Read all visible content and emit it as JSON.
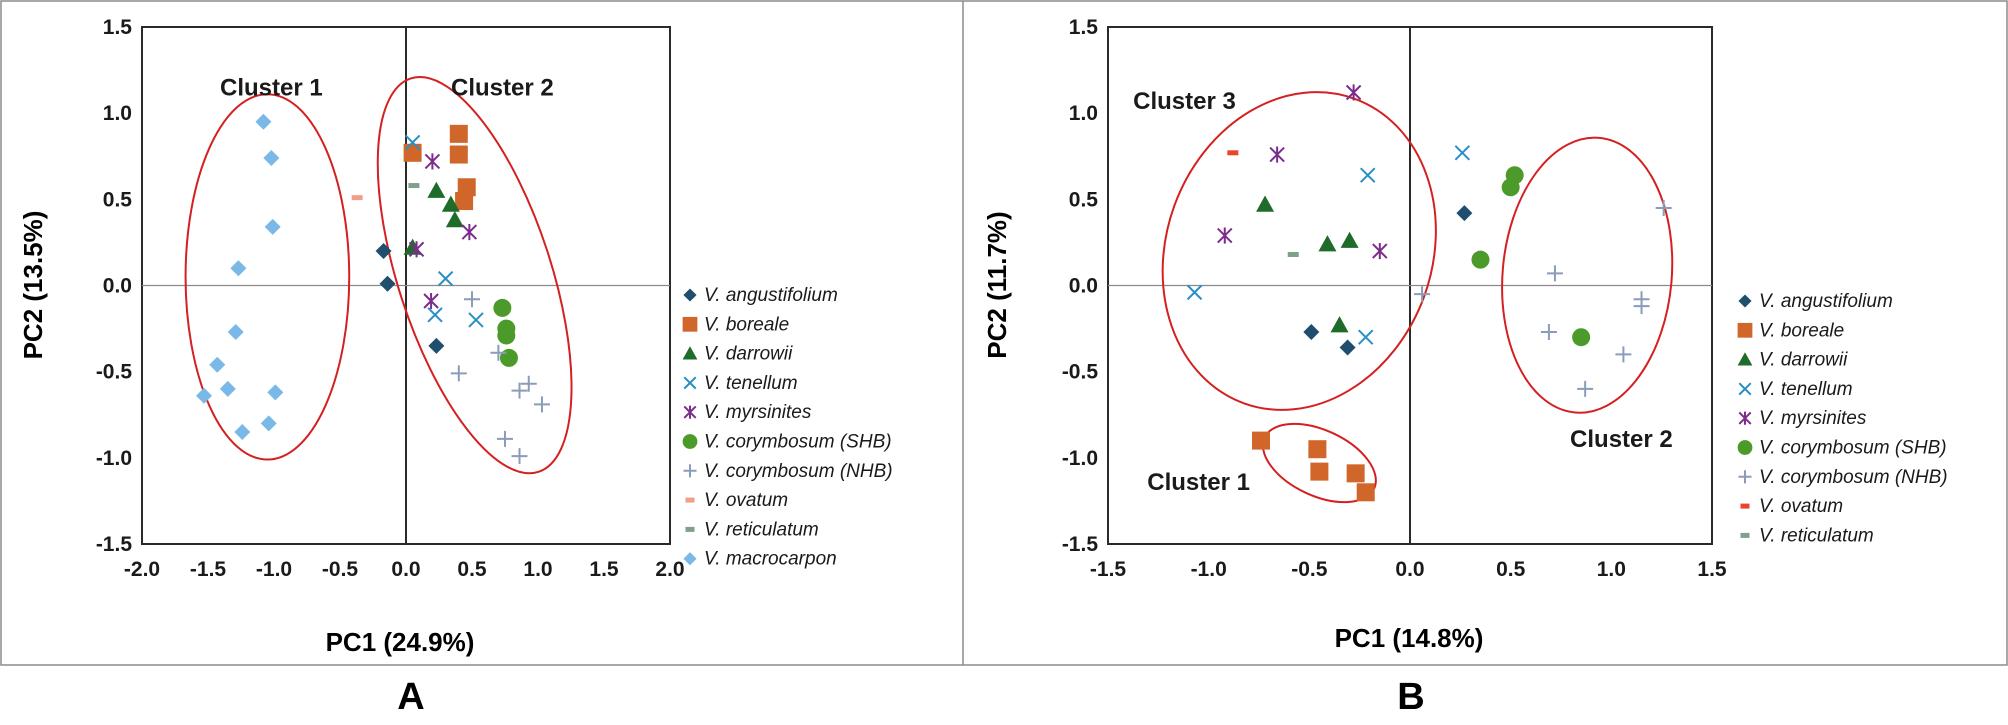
{
  "colors": {
    "V. angustifolium": "#1f4e6e",
    "V. boreale": "#d0662a",
    "V. darrowii": "#1f6b2a",
    "V. tenellum": "#2a8fc4",
    "V. myrsinites": "#7c2d8c",
    "V. corymbosum (SHB)": "#4c9a2a",
    "V. corymbosum (NHB)": "#8a9cb8",
    "V. ovatum (A)": "#f0a08a",
    "V. ovatum (B)": "#e8452c",
    "V. reticulatum": "#7fa08a",
    "V. macrocarpon": "#7ab8e8",
    "cluster_outline": "#d42020"
  },
  "chart_data": [
    {
      "type": "scatter",
      "panel_label": "A",
      "xlabel": "PC1 (24.9%)",
      "ylabel": "PC2 (13.5%)",
      "xlim": [
        -2.0,
        2.0
      ],
      "ylim": [
        -1.5,
        1.5
      ],
      "xticks": [
        "-2.0",
        "-1.5",
        "-1.0",
        "-0.5",
        "0.0",
        "0.5",
        "1.0",
        "1.5",
        "2.0"
      ],
      "yticks": [
        "1.5",
        "1.0",
        "0.5",
        "0.0",
        "-0.5",
        "-1.0",
        "-1.5"
      ],
      "legend_position": "right",
      "annotations": [
        {
          "text": "Cluster 1",
          "x": -1.02,
          "y": 1.15
        },
        {
          "text": "Cluster 2",
          "x": 0.73,
          "y": 1.15
        }
      ],
      "clusters": [
        {
          "name": "Cluster 1",
          "cx": -1.05,
          "cy": 0.05,
          "rx": 0.62,
          "ry": 1.06,
          "rot": 0
        },
        {
          "name": "Cluster 2",
          "cx": 0.52,
          "cy": 0.06,
          "rx": 0.58,
          "ry": 1.2,
          "rot": -18
        }
      ],
      "series": [
        {
          "name": "V. angustifolium",
          "marker": "diamond",
          "points": [
            [
              -0.17,
              0.2
            ],
            [
              -0.14,
              0.01
            ],
            [
              0.23,
              -0.35
            ]
          ]
        },
        {
          "name": "V. boreale",
          "marker": "square",
          "points": [
            [
              0.05,
              0.77
            ],
            [
              0.4,
              0.88
            ],
            [
              0.4,
              0.76
            ],
            [
              0.46,
              0.57
            ],
            [
              0.44,
              0.49
            ]
          ]
        },
        {
          "name": "V. darrowii",
          "marker": "triangle",
          "points": [
            [
              0.23,
              0.55
            ],
            [
              0.34,
              0.47
            ],
            [
              0.37,
              0.38
            ],
            [
              0.05,
              0.22
            ]
          ]
        },
        {
          "name": "V. tenellum",
          "marker": "x",
          "points": [
            [
              0.05,
              0.83
            ],
            [
              0.3,
              0.04
            ],
            [
              0.22,
              -0.17
            ],
            [
              0.53,
              -0.2
            ]
          ]
        },
        {
          "name": "V. myrsinites",
          "marker": "asterisk",
          "points": [
            [
              0.2,
              0.72
            ],
            [
              0.48,
              0.31
            ],
            [
              0.08,
              0.21
            ],
            [
              0.19,
              -0.09
            ]
          ]
        },
        {
          "name": "V. corymbosum (SHB)",
          "marker": "circle",
          "points": [
            [
              0.73,
              -0.13
            ],
            [
              0.76,
              -0.25
            ],
            [
              0.76,
              -0.29
            ],
            [
              0.78,
              -0.42
            ]
          ]
        },
        {
          "name": "V. corymbosum (NHB)",
          "marker": "plus",
          "points": [
            [
              0.5,
              -0.08
            ],
            [
              0.4,
              -0.51
            ],
            [
              0.7,
              -0.39
            ],
            [
              0.86,
              -0.61
            ],
            [
              0.93,
              -0.57
            ],
            [
              1.03,
              -0.69
            ],
            [
              0.75,
              -0.89
            ],
            [
              0.86,
              -0.99
            ]
          ]
        },
        {
          "name": "V. ovatum",
          "marker": "dash",
          "color_key": "V. ovatum (A)",
          "points": [
            [
              -0.37,
              0.51
            ]
          ]
        },
        {
          "name": "V. reticulatum",
          "marker": "dash",
          "points": [
            [
              0.06,
              0.58
            ]
          ]
        },
        {
          "name": "V. macrocarpon",
          "marker": "diamond",
          "points": [
            [
              -1.08,
              0.95
            ],
            [
              -1.02,
              0.74
            ],
            [
              -1.01,
              0.34
            ],
            [
              -1.27,
              0.1
            ],
            [
              -1.29,
              -0.27
            ],
            [
              -1.43,
              -0.46
            ],
            [
              -1.35,
              -0.6
            ],
            [
              -0.99,
              -0.62
            ],
            [
              -1.53,
              -0.64
            ],
            [
              -1.04,
              -0.8
            ],
            [
              -1.24,
              -0.85
            ]
          ]
        }
      ]
    },
    {
      "type": "scatter",
      "panel_label": "B",
      "xlabel": "PC1 (14.8%)",
      "ylabel": "PC2 (11.7%)",
      "xlim": [
        -1.5,
        1.5
      ],
      "ylim": [
        -1.5,
        1.5
      ],
      "xticks": [
        "-1.5",
        "-1.0",
        "-0.5",
        "0.0",
        "0.5",
        "1.0",
        "1.5"
      ],
      "yticks": [
        "1.5",
        "1.0",
        "0.5",
        "0.0",
        "-0.5",
        "-1.0",
        "-1.5"
      ],
      "legend_position": "right",
      "annotations": [
        {
          "text": "Cluster 3",
          "x": -1.12,
          "y": 1.07
        },
        {
          "text": "Cluster 2",
          "x": 1.05,
          "y": -0.89
        },
        {
          "text": "Cluster 1",
          "x": -1.05,
          "y": -1.14
        }
      ],
      "clusters": [
        {
          "name": "Cluster 3",
          "cx": -0.55,
          "cy": 0.2,
          "rx": 0.66,
          "ry": 0.94,
          "rot": 20
        },
        {
          "name": "Cluster 2",
          "cx": 0.88,
          "cy": 0.06,
          "rx": 0.42,
          "ry": 0.8,
          "rot": 5
        },
        {
          "name": "Cluster 1",
          "cx": -0.45,
          "cy": -1.03,
          "rx": 0.3,
          "ry": 0.19,
          "rot": 25
        }
      ],
      "series": [
        {
          "name": "V. angustifolium",
          "marker": "diamond",
          "points": [
            [
              0.27,
              0.42
            ],
            [
              -0.49,
              -0.27
            ],
            [
              -0.31,
              -0.36
            ]
          ]
        },
        {
          "name": "V. boreale",
          "marker": "square",
          "points": [
            [
              -0.74,
              -0.9
            ],
            [
              -0.46,
              -0.95
            ],
            [
              -0.45,
              -1.08
            ],
            [
              -0.27,
              -1.09
            ],
            [
              -0.22,
              -1.2
            ]
          ]
        },
        {
          "name": "V. darrowii",
          "marker": "triangle",
          "points": [
            [
              -0.72,
              0.47
            ],
            [
              -0.41,
              0.24
            ],
            [
              -0.3,
              0.26
            ],
            [
              -0.35,
              -0.23
            ]
          ]
        },
        {
          "name": "V. tenellum",
          "marker": "x",
          "points": [
            [
              0.26,
              0.77
            ],
            [
              -0.21,
              0.64
            ],
            [
              -1.07,
              -0.04
            ],
            [
              -0.22,
              -0.3
            ]
          ]
        },
        {
          "name": "V. myrsinites",
          "marker": "asterisk",
          "points": [
            [
              -0.28,
              1.12
            ],
            [
              -0.66,
              0.76
            ],
            [
              -0.92,
              0.29
            ],
            [
              -0.15,
              0.2
            ]
          ]
        },
        {
          "name": "V. corymbosum (SHB)",
          "marker": "circle",
          "points": [
            [
              0.52,
              0.64
            ],
            [
              0.5,
              0.57
            ],
            [
              0.35,
              0.15
            ],
            [
              0.85,
              -0.3
            ]
          ]
        },
        {
          "name": "V. corymbosum (NHB)",
          "marker": "plus",
          "points": [
            [
              1.26,
              0.45
            ],
            [
              0.72,
              0.07
            ],
            [
              1.15,
              -0.08
            ],
            [
              1.15,
              -0.12
            ],
            [
              0.69,
              -0.27
            ],
            [
              1.06,
              -0.4
            ],
            [
              0.87,
              -0.6
            ],
            [
              0.06,
              -0.05
            ]
          ]
        },
        {
          "name": "V. ovatum",
          "marker": "dash",
          "color_key": "V. ovatum (B)",
          "points": [
            [
              -0.88,
              0.77
            ]
          ]
        },
        {
          "name": "V. reticulatum",
          "marker": "dash",
          "points": [
            [
              -0.58,
              0.18
            ]
          ]
        }
      ]
    }
  ]
}
